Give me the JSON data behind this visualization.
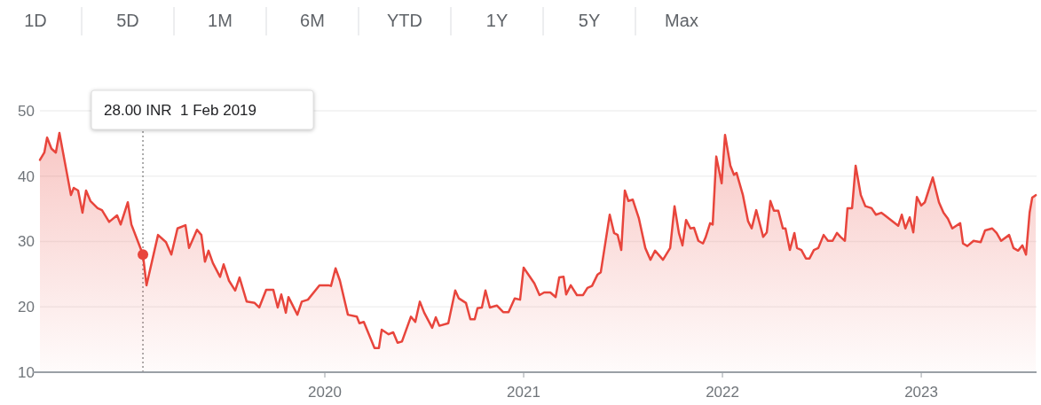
{
  "chart_data": {
    "type": "area",
    "xlim": [
      2018.567,
      2023.58
    ],
    "xticks": [
      2020,
      2021,
      2022,
      2023
    ],
    "ylim": [
      10,
      50
    ],
    "yticks": [
      10,
      20,
      30,
      40,
      50
    ],
    "grid": "y",
    "marker": "none",
    "line_style": "solid",
    "annotations": [
      "1D",
      "5D",
      "1M",
      "6M",
      "YTD",
      "1Y",
      "5Y",
      "Max"
    ],
    "ref_lines": [
      {
        "axis": "x",
        "value": 2019.085,
        "line_style": "dotted",
        "color": "#777777",
        "label": "28.00 INR  1 Feb 2019"
      }
    ],
    "series": [
      {
        "type": "scatter",
        "color": "#e8453c",
        "marker": "circle",
        "x": [
          2019.085
        ],
        "values": [
          28.0
        ]
      },
      {
        "color": "#e8453c",
        "x": [
          2018.567,
          2018.589,
          2018.603,
          2018.625,
          2018.647,
          2018.665,
          2018.723,
          2018.737,
          2018.759,
          2018.781,
          2018.799,
          2018.821,
          2018.857,
          2018.879,
          2018.915,
          2018.955,
          2018.973,
          2019.009,
          2019.027,
          2019.085,
          2019.103,
          2019.161,
          2019.201,
          2019.228,
          2019.259,
          2019.299,
          2019.317,
          2019.357,
          2019.379,
          2019.397,
          2019.415,
          2019.437,
          2019.473,
          2019.491,
          2019.518,
          2019.549,
          2019.571,
          2019.607,
          2019.647,
          2019.67,
          2019.705,
          2019.741,
          2019.763,
          2019.781,
          2019.804,
          2019.817,
          2019.862,
          2019.884,
          2019.915,
          2019.973,
          2020.018,
          2020.031,
          2020.054,
          2020.076,
          2020.116,
          2020.161,
          2020.174,
          2020.196,
          2020.25,
          2020.272,
          2020.286,
          2020.321,
          2020.344,
          2020.366,
          2020.388,
          2020.433,
          2020.455,
          2020.478,
          2020.5,
          2020.54,
          2020.558,
          2020.576,
          2020.621,
          2020.656,
          2020.674,
          2020.71,
          2020.732,
          2020.754,
          2020.768,
          2020.79,
          2020.808,
          2020.83,
          2020.866,
          2020.897,
          2020.924,
          2020.955,
          2020.982,
          2021.0,
          2021.054,
          2021.08,
          2021.103,
          2021.134,
          2021.161,
          2021.179,
          2021.201,
          2021.214,
          2021.237,
          2021.268,
          2021.299,
          2021.321,
          2021.344,
          2021.371,
          2021.388,
          2021.433,
          2021.455,
          2021.473,
          2021.491,
          2021.509,
          2021.527,
          2021.549,
          2021.58,
          2021.612,
          2021.638,
          2021.661,
          2021.701,
          2021.737,
          2021.759,
          2021.781,
          2021.799,
          2021.817,
          2021.839,
          2021.857,
          2021.879,
          2021.902,
          2021.915,
          2021.938,
          2021.951,
          2021.969,
          2021.996,
          2022.013,
          2022.04,
          2022.058,
          2022.071,
          2022.103,
          2022.129,
          2022.147,
          2022.17,
          2022.205,
          2022.223,
          2022.241,
          2022.259,
          2022.281,
          2022.304,
          2022.317,
          2022.339,
          2022.362,
          2022.375,
          2022.397,
          2022.42,
          2022.438,
          2022.46,
          2022.482,
          2022.509,
          2022.531,
          2022.554,
          2022.576,
          2022.594,
          2022.616,
          2022.629,
          2022.652,
          2022.67,
          2022.696,
          2022.719,
          2022.75,
          2022.772,
          2022.799,
          2022.817,
          2022.884,
          2022.902,
          2022.92,
          2022.942,
          2022.96,
          2022.978,
          2023.0,
          2023.018,
          2023.058,
          2023.089,
          2023.112,
          2023.134,
          2023.156,
          2023.196,
          2023.21,
          2023.232,
          2023.263,
          2023.299,
          2023.321,
          2023.357,
          2023.379,
          2023.402,
          2023.442,
          2023.464,
          2023.487,
          2023.509,
          2023.527,
          2023.545,
          2023.558,
          2023.576
        ],
        "values": [
          42.5,
          43.6,
          45.9,
          44.2,
          43.6,
          46.6,
          37.1,
          38.2,
          37.8,
          34.4,
          37.8,
          36.2,
          35.1,
          34.8,
          33.0,
          34.0,
          32.6,
          36.0,
          32.6,
          28.0,
          23.3,
          31.0,
          29.9,
          28.0,
          32.0,
          32.5,
          29.0,
          31.8,
          31.0,
          26.9,
          28.6,
          26.7,
          24.6,
          26.5,
          24.0,
          22.5,
          24.5,
          20.8,
          20.6,
          19.9,
          22.6,
          22.6,
          19.9,
          21.9,
          19.1,
          21.5,
          18.8,
          20.8,
          21.1,
          23.3,
          23.3,
          23.2,
          25.9,
          24.0,
          18.8,
          18.5,
          17.5,
          17.7,
          13.7,
          13.7,
          16.5,
          15.8,
          16.1,
          14.5,
          14.7,
          18.5,
          17.7,
          20.8,
          19.1,
          16.8,
          18.4,
          17.1,
          17.5,
          22.5,
          21.3,
          20.6,
          18.1,
          18.1,
          19.8,
          19.9,
          22.5,
          19.9,
          20.2,
          19.2,
          19.2,
          21.3,
          21.1,
          26.0,
          23.6,
          21.8,
          22.2,
          22.2,
          21.5,
          24.5,
          24.6,
          21.9,
          23.3,
          21.8,
          21.8,
          22.9,
          23.2,
          24.9,
          25.3,
          34.1,
          31.3,
          31.0,
          28.7,
          37.8,
          36.2,
          36.4,
          33.5,
          29.0,
          27.2,
          28.6,
          27.2,
          29.0,
          35.4,
          31.3,
          29.4,
          33.3,
          32.0,
          32.1,
          30.1,
          29.7,
          30.6,
          32.8,
          32.6,
          43.0,
          38.9,
          46.3,
          41.6,
          40.2,
          40.5,
          37.1,
          33.1,
          32.0,
          34.8,
          30.7,
          31.4,
          36.2,
          34.7,
          34.7,
          32.0,
          32.0,
          28.7,
          31.3,
          29.0,
          28.7,
          27.4,
          27.4,
          28.7,
          29.0,
          31.0,
          30.1,
          30.1,
          31.3,
          30.7,
          30.1,
          35.1,
          35.1,
          41.6,
          37.1,
          35.4,
          35.1,
          34.1,
          34.4,
          34.0,
          32.4,
          34.1,
          32.0,
          33.7,
          31.4,
          36.8,
          35.5,
          36.0,
          39.8,
          36.0,
          34.4,
          33.5,
          32.0,
          32.8,
          29.7,
          29.3,
          30.1,
          29.9,
          31.7,
          32.0,
          31.3,
          30.1,
          31.0,
          29.0,
          28.6,
          29.4,
          28.0,
          34.4,
          36.7,
          37.1
        ]
      }
    ]
  }
}
